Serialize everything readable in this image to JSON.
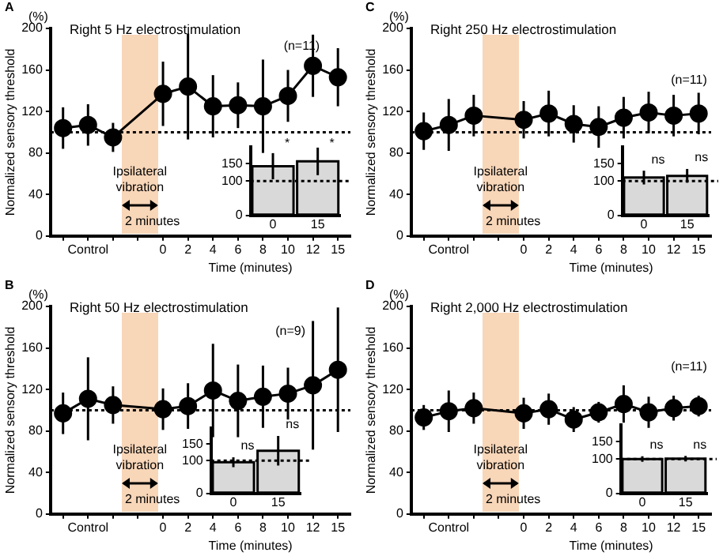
{
  "chart_data": [
    {
      "type": "line",
      "title": "Right 5 Hz electrostimulation",
      "xlabel": "Time (minutes)",
      "ylabel": "Normalized sensory threshold",
      "categories": [
        null,
        "Control",
        null,
        null,
        "0",
        "2",
        "4",
        "6",
        "8",
        "10",
        "12",
        "15"
      ],
      "values": [
        104,
        107,
        95,
        null,
        137,
        144,
        125,
        126,
        125,
        135,
        164,
        153
      ],
      "errors": [
        20,
        20,
        14,
        null,
        31,
        51,
        30,
        22,
        45,
        25,
        30,
        28
      ],
      "color": "#000000",
      "marker": "circle",
      "ylim": [
        0,
        200
      ],
      "yticks": [
        0,
        40,
        80,
        120,
        160,
        200
      ],
      "ref_lines": [
        {
          "axis": "y",
          "value": 100,
          "line_style": "dotted"
        }
      ],
      "annotations": [
        "A",
        "(%)",
        "(n=11)",
        "Ipsilateral vibration",
        "2 minutes"
      ]
    },
    {
      "type": "bar",
      "categories": [
        "0",
        "15"
      ],
      "values": [
        143,
        157
      ],
      "errors": [
        38,
        40
      ],
      "color": "#d9d9d9",
      "ylim": [
        0,
        200
      ],
      "yticks": [
        0,
        100,
        150
      ],
      "ref_lines": [
        {
          "axis": "y",
          "value": 100,
          "line_style": "dotted"
        }
      ],
      "annotations": [
        "*",
        "*"
      ]
    },
    {
      "type": "line",
      "title": "Right 250 Hz electrostimulation",
      "xlabel": "Time (minutes)",
      "ylabel": "Normalized sensory threshold",
      "categories": [
        null,
        "Control",
        null,
        null,
        "0",
        "2",
        "4",
        "6",
        "8",
        "10",
        "12",
        "15"
      ],
      "values": [
        101,
        107,
        116,
        null,
        112,
        118,
        108,
        105,
        114,
        119,
        116,
        118
      ],
      "errors": [
        18,
        25,
        20,
        null,
        18,
        22,
        18,
        20,
        20,
        20,
        20,
        20
      ],
      "color": "#000000",
      "marker": "circle",
      "ylim": [
        0,
        200
      ],
      "yticks": [
        0,
        40,
        80,
        120,
        160,
        200
      ],
      "ref_lines": [
        {
          "axis": "y",
          "value": 100,
          "line_style": "dotted"
        }
      ],
      "annotations": [
        "C",
        "(%)",
        "(n=11)",
        "Ipsilateral vibration",
        "2 minutes"
      ]
    },
    {
      "type": "bar",
      "categories": [
        "0",
        "15"
      ],
      "values": [
        110,
        115
      ],
      "errors": [
        20,
        20
      ],
      "color": "#d9d9d9",
      "ylim": [
        0,
        200
      ],
      "yticks": [
        0,
        100,
        150
      ],
      "ref_lines": [
        {
          "axis": "y",
          "value": 100,
          "line_style": "dotted"
        }
      ],
      "annotations": [
        "ns",
        "ns"
      ]
    },
    {
      "type": "line",
      "title": "Right 50 Hz electrostimulation",
      "xlabel": "Time (minutes)",
      "ylabel": "Normalized sensory threshold",
      "categories": [
        null,
        "Control",
        null,
        null,
        "0",
        "2",
        "4",
        "6",
        "8",
        "10",
        "12",
        "15"
      ],
      "values": [
        97,
        111,
        105,
        null,
        101,
        104,
        119,
        109,
        113,
        116,
        124,
        139
      ],
      "errors": [
        20,
        40,
        18,
        null,
        20,
        22,
        45,
        35,
        30,
        25,
        62,
        60
      ],
      "color": "#000000",
      "marker": "circle",
      "ylim": [
        0,
        200
      ],
      "yticks": [
        0,
        40,
        80,
        120,
        160,
        200
      ],
      "ref_lines": [
        {
          "axis": "y",
          "value": 100,
          "line_style": "dotted"
        }
      ],
      "annotations": [
        "B",
        "(%)",
        "(n=9)",
        "Ipsilateral vibration",
        "2 minutes"
      ]
    },
    {
      "type": "bar",
      "categories": [
        "0",
        "15"
      ],
      "values": [
        95,
        130
      ],
      "errors": [
        15,
        45
      ],
      "color": "#d9d9d9",
      "ylim": [
        0,
        200
      ],
      "yticks": [
        0,
        100,
        150
      ],
      "ref_lines": [
        {
          "axis": "y",
          "value": 100,
          "line_style": "dotted"
        }
      ],
      "annotations": [
        "ns",
        "ns"
      ]
    },
    {
      "type": "line",
      "title": "Right 2,000 Hz electrostimulation",
      "xlabel": "Time (minutes)",
      "ylabel": "Normalized sensory threshold",
      "categories": [
        null,
        "Control",
        null,
        null,
        "0",
        "2",
        "4",
        "6",
        "8",
        "10",
        "12",
        "15"
      ],
      "values": [
        93,
        99,
        102,
        null,
        97,
        101,
        91,
        98,
        106,
        98,
        102,
        104
      ],
      "errors": [
        12,
        20,
        15,
        null,
        15,
        15,
        12,
        10,
        18,
        15,
        12,
        10
      ],
      "color": "#000000",
      "marker": "circle",
      "ylim": [
        0,
        200
      ],
      "yticks": [
        0,
        40,
        80,
        120,
        160,
        200
      ],
      "ref_lines": [
        {
          "axis": "y",
          "value": 100,
          "line_style": "dotted"
        }
      ],
      "annotations": [
        "D",
        "(%)",
        "(n=11)",
        "Ipsilateral vibration",
        "2 minutes"
      ]
    },
    {
      "type": "bar",
      "categories": [
        "0",
        "15"
      ],
      "values": [
        100,
        101
      ],
      "errors": [
        8,
        8
      ],
      "color": "#d9d9d9",
      "ylim": [
        0,
        200
      ],
      "yticks": [
        0,
        100,
        150
      ],
      "ref_lines": [
        {
          "axis": "y",
          "value": 100,
          "line_style": "dotted"
        }
      ],
      "annotations": [
        "ns",
        "ns"
      ]
    }
  ]
}
